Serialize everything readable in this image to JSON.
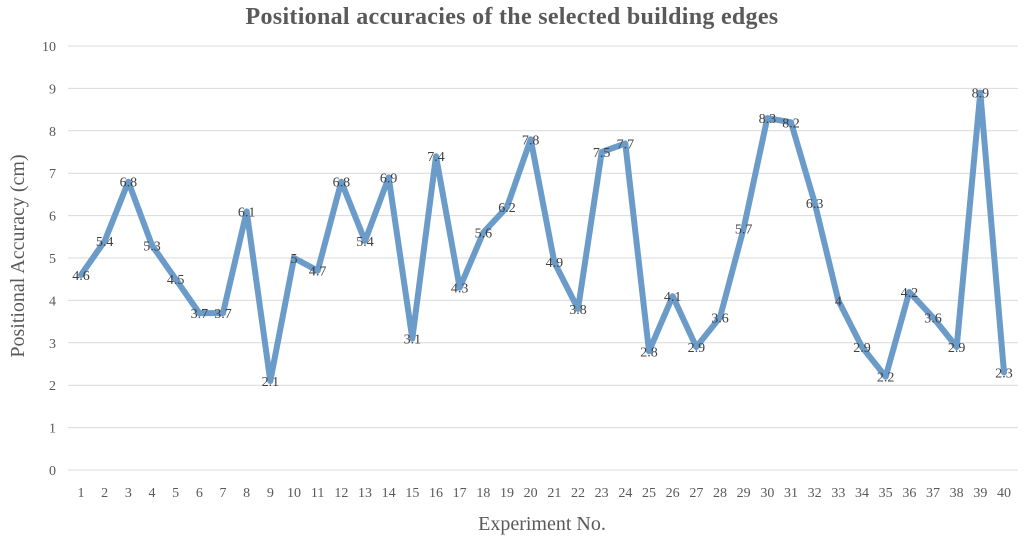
{
  "chart_data": {
    "type": "line",
    "title": "Positional accuracies of the selected building  edges",
    "xlabel": "Experiment No.",
    "ylabel": "Positional Accuracy (cm)",
    "ylim": [
      0,
      10
    ],
    "yticks": [
      0,
      1,
      2,
      3,
      4,
      5,
      6,
      7,
      8,
      9,
      10
    ],
    "grid": true,
    "legend": "none",
    "line_color": "#6b9bc8",
    "grid_color": "#d9d9d9",
    "categories": [
      "1",
      "2",
      "3",
      "4",
      "5",
      "6",
      "7",
      "8",
      "9",
      "10",
      "11",
      "12",
      "13",
      "14",
      "15",
      "16",
      "17",
      "18",
      "19",
      "20",
      "21",
      "22",
      "23",
      "24",
      "25",
      "26",
      "27",
      "28",
      "29",
      "30",
      "31",
      "32",
      "33",
      "34",
      "35",
      "36",
      "37",
      "38",
      "39",
      "40"
    ],
    "values": [
      4.6,
      5.4,
      6.8,
      5.3,
      4.5,
      3.7,
      3.7,
      6.1,
      2.1,
      5,
      4.7,
      6.8,
      5.4,
      6.9,
      3.1,
      7.4,
      4.3,
      5.6,
      6.2,
      7.8,
      4.9,
      3.8,
      7.5,
      7.7,
      2.8,
      4.1,
      2.9,
      3.6,
      5.7,
      8.3,
      8.2,
      6.3,
      4,
      2.9,
      2.2,
      4.2,
      3.6,
      2.9,
      8.9,
      2.3
    ]
  }
}
